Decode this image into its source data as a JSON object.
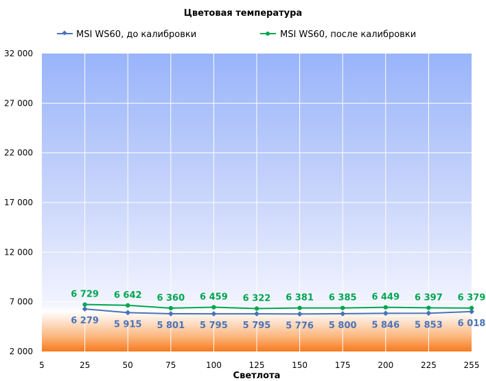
{
  "chart_data": {
    "type": "line",
    "title": "Цветовая температура",
    "xlabel": "Светлота",
    "ylabel": "",
    "x_ticks": [
      "5",
      "25",
      "50",
      "75",
      "100",
      "125",
      "150",
      "175",
      "200",
      "225",
      "255"
    ],
    "y_ticks": [
      "2 000",
      "7 000",
      "12 000",
      "17 000",
      "22 000",
      "27 000",
      "32 000"
    ],
    "ylim": [
      2000,
      32000
    ],
    "grid": true,
    "legend_position": "top",
    "x": [
      25,
      50,
      75,
      100,
      125,
      150,
      175,
      200,
      225,
      255
    ],
    "series": [
      {
        "name": "MSI WS60, до калибровки",
        "color": "#4a72b8",
        "marker": "diamond",
        "values": [
          6279,
          5915,
          5801,
          5795,
          5795,
          5776,
          5800,
          5846,
          5853,
          6018
        ],
        "labels": [
          "6 279",
          "5 915",
          "5 801",
          "5 795",
          "5 795",
          "5 776",
          "5 800",
          "5 846",
          "5 853",
          "6 018"
        ]
      },
      {
        "name": "MSI WS60, после калибровки",
        "color": "#00a650",
        "marker": "circle",
        "values": [
          6729,
          6642,
          6360,
          6459,
          6322,
          6381,
          6385,
          6449,
          6397,
          6379
        ],
        "labels": [
          "6 729",
          "6 642",
          "6 360",
          "6 459",
          "6 322",
          "6 381",
          "6 385",
          "6 449",
          "6 397",
          "6 379"
        ]
      }
    ]
  }
}
